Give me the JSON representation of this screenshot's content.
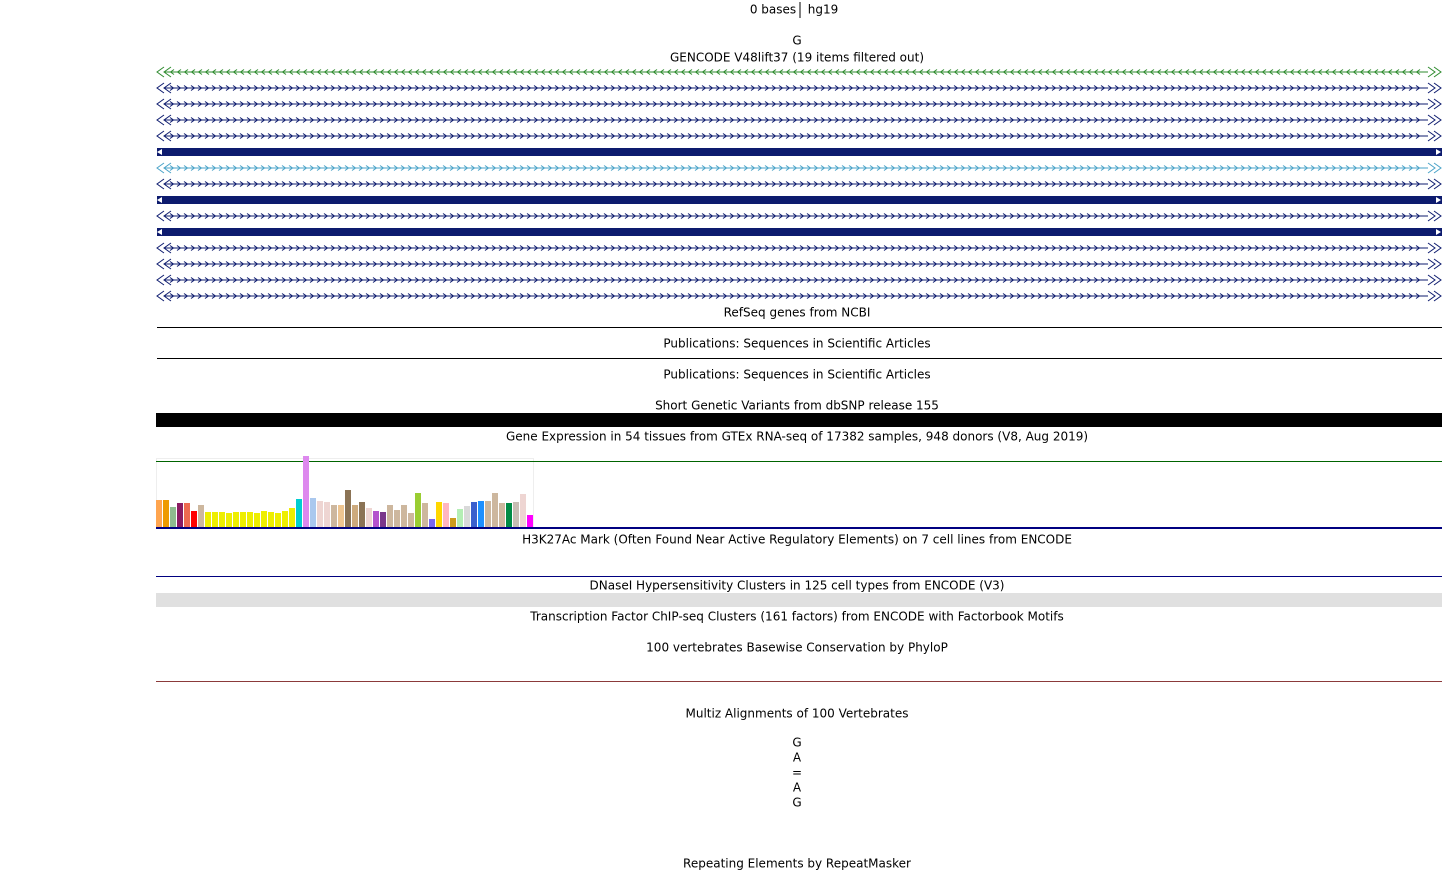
{
  "ruler": {
    "size": "0 bases",
    "assembly": "hg19"
  },
  "base": "G",
  "tracks": [
    {
      "title": "GENCODE V48lift37 (19 items filtered out)"
    },
    {
      "title": "RefSeq genes from NCBI"
    },
    {
      "title": "Publications: Sequences in Scientific Articles"
    },
    {
      "title": "Publications: Sequences in Scientific Articles"
    },
    {
      "title": "Short Genetic Variants from dbSNP release 155"
    },
    {
      "title": "Gene Expression in 54 tissues from GTEx RNA-seq of 17382 samples, 948 donors (V8, Aug 2019)"
    },
    {
      "title": "H3K27Ac Mark (Often Found Near Active Regulatory Elements) on 7 cell lines from ENCODE"
    },
    {
      "title": "DNaseI Hypersensitivity Clusters in 125 cell types from ENCODE (V3)"
    },
    {
      "title": "Transcription Factor ChIP-seq Clusters (161 factors) from ENCODE with Factorbook Motifs"
    },
    {
      "title": "100 vertebrates Basewise Conservation by PhyloP"
    },
    {
      "title": "Multiz Alignments of 100 Vertebrates"
    },
    {
      "title": "Repeating Elements by RepeatMasker"
    }
  ],
  "multiz_bases": [
    "G",
    "A",
    "=",
    "A",
    "G"
  ],
  "gtex": {
    "values": [
      27,
      27,
      20,
      24,
      24,
      16,
      22,
      15,
      15,
      15,
      14,
      15,
      15,
      15,
      14,
      16,
      15,
      14,
      16,
      19,
      28,
      71,
      29,
      26,
      25,
      22,
      22,
      37,
      22,
      25,
      19,
      16,
      15,
      22,
      17,
      22,
      14,
      34,
      24,
      8,
      25,
      24,
      9,
      18,
      21,
      25,
      26,
      26,
      34,
      24,
      24,
      25,
      33,
      12
    ],
    "colors": [
      "#FFA54F",
      "#EE9A00",
      "#8FBC8F",
      "#8B1C62",
      "#EE6A50",
      "#FF0000",
      "#CDB79E",
      "#EEEE00",
      "#EEEE00",
      "#EEEE00",
      "#EEEE00",
      "#EEEE00",
      "#EEEE00",
      "#EEEE00",
      "#EEEE00",
      "#EEEE00",
      "#EEEE00",
      "#EEEE00",
      "#EEEE00",
      "#EEEE00",
      "#00CED1",
      "#DD88EE",
      "#AAC8EE",
      "#EED5D2",
      "#EED5D2",
      "#CDB79E",
      "#EEC591",
      "#8B7355",
      "#CDAA7D",
      "#8B7355",
      "#EED5D2",
      "#B452CD",
      "#7A378B",
      "#CDB79E",
      "#CDB79E",
      "#CDB79E",
      "#CDB79E",
      "#9ACD32",
      "#CDB79E",
      "#7A67EE",
      "#FFD700",
      "#FFB6C1",
      "#CD9B1D",
      "#B4EEB4",
      "#D9D9D9",
      "#3A5FCD",
      "#1E90FF",
      "#CDB79E",
      "#CDB79E",
      "#CDB79E",
      "#008B45",
      "#C8BEB4",
      "#EED5D2",
      "#FF00FF"
    ]
  }
}
